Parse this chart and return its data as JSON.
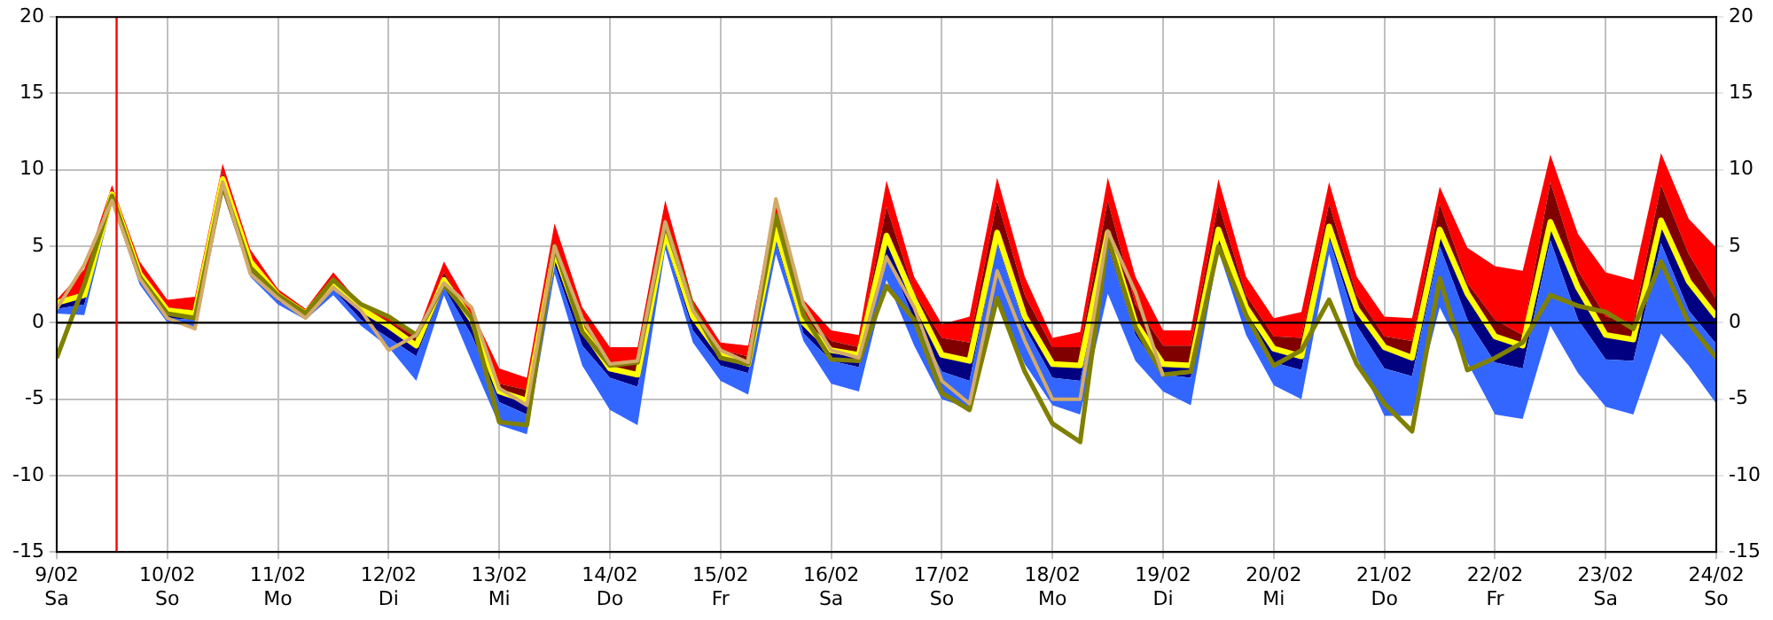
{
  "chart_data": {
    "type": "line",
    "x": [
      "--02-09T00:00",
      "--02-09T06:00",
      "--02-09T12:00",
      "--02-09T18:00",
      "--02-10T00:00",
      "--02-10T06:00",
      "--02-10T12:00",
      "--02-10T18:00",
      "--02-11T00:00",
      "--02-11T06:00",
      "--02-11T12:00",
      "--02-11T18:00",
      "--02-12T00:00",
      "--02-12T06:00",
      "--02-12T12:00",
      "--02-12T18:00",
      "--02-13T00:00",
      "--02-13T06:00",
      "--02-13T12:00",
      "--02-13T18:00",
      "--02-14T00:00",
      "--02-14T06:00",
      "--02-14T12:00",
      "--02-14T18:00",
      "--02-15T00:00",
      "--02-15T06:00",
      "--02-15T12:00",
      "--02-15T18:00",
      "--02-16T00:00",
      "--02-16T06:00",
      "--02-16T12:00",
      "--02-16T18:00",
      "--02-17T00:00",
      "--02-17T06:00",
      "--02-17T12:00",
      "--02-17T18:00",
      "--02-18T00:00",
      "--02-18T06:00",
      "--02-18T12:00",
      "--02-18T18:00",
      "--02-19T00:00",
      "--02-19T06:00",
      "--02-19T12:00",
      "--02-19T18:00",
      "--02-20T00:00",
      "--02-20T06:00",
      "--02-20T12:00",
      "--02-20T18:00",
      "--02-21T00:00",
      "--02-21T06:00",
      "--02-21T12:00",
      "--02-21T18:00",
      "--02-22T00:00",
      "--02-22T06:00",
      "--02-22T12:00",
      "--02-22T18:00",
      "--02-23T00:00",
      "--02-23T06:00",
      "--02-23T12:00",
      "--02-23T18:00",
      "--02-24T00:00"
    ],
    "xlim": [
      "--02-09",
      "--02-24"
    ],
    "xticks": [
      {
        "value": "--02-09",
        "label": "9/02\nSa"
      },
      {
        "value": "--02-10",
        "label": "10/02\nSo"
      },
      {
        "value": "--02-11",
        "label": "11/02\nMo"
      },
      {
        "value": "--02-12",
        "label": "12/02\nDi"
      },
      {
        "value": "--02-13",
        "label": "13/02\nMi"
      },
      {
        "value": "--02-14",
        "label": "14/02\nDo"
      },
      {
        "value": "--02-15",
        "label": "15/02\nFr"
      },
      {
        "value": "--02-16",
        "label": "16/02\nSa"
      },
      {
        "value": "--02-17",
        "label": "17/02\nSo"
      },
      {
        "value": "--02-18",
        "label": "18/02\nMo"
      },
      {
        "value": "--02-19",
        "label": "19/02\nDi"
      },
      {
        "value": "--02-20",
        "label": "20/02\nMi"
      },
      {
        "value": "--02-21",
        "label": "21/02\nDo"
      },
      {
        "value": "--02-22",
        "label": "22/02\nFr"
      },
      {
        "value": "--02-23",
        "label": "23/02\nSa"
      },
      {
        "value": "--02-24",
        "label": "24/02\nSo"
      }
    ],
    "series": [
      {
        "type": "area",
        "color": "#3366ff",
        "lower": [
          0.6,
          0.5,
          7.8,
          2.5,
          0.0,
          -0.3,
          8.6,
          3.0,
          1.2,
          0.2,
          1.8,
          -0.2,
          -1.6,
          -3.8,
          1.8,
          -2.5,
          -6.7,
          -7.3,
          3.2,
          -2.8,
          -5.7,
          -6.7,
          4.8,
          -1.3,
          -3.8,
          -4.7,
          4.5,
          -1.2,
          -4.0,
          -4.5,
          2.8,
          -1.5,
          -5.0,
          -5.6,
          1.4,
          -2.7,
          -5.4,
          -6.0,
          1.9,
          -2.5,
          -4.5,
          -5.4,
          4.7,
          -0.8,
          -4.1,
          -5.0,
          4.5,
          -2.3,
          -6.1,
          -6.1,
          1.0,
          -2.6,
          -6.0,
          -6.3,
          -0.2,
          -3.3,
          -5.5,
          -6.0,
          -0.7,
          -2.8,
          -5.3
        ],
        "values": [
          null,
          null,
          null,
          null,
          null,
          null,
          null,
          null,
          null,
          null,
          null,
          null,
          null,
          null,
          null,
          null,
          null,
          null,
          null,
          null,
          null,
          null,
          null,
          null,
          null,
          null,
          null,
          null,
          null,
          null,
          null,
          null,
          null,
          null,
          null,
          null,
          null,
          null,
          null,
          null,
          null,
          null,
          null,
          null,
          null,
          null,
          null,
          null,
          null,
          null,
          null,
          null,
          null,
          null,
          null,
          null,
          null,
          null,
          null,
          null,
          null
        ],
        "upper": [
          0.9,
          1.2,
          8.0,
          2.8,
          0.3,
          0.2,
          8.9,
          3.4,
          1.4,
          0.4,
          2.2,
          0.2,
          -1.0,
          -2.2,
          2.3,
          -0.8,
          -5.2,
          -6.0,
          3.8,
          -1.5,
          -3.6,
          -4.2,
          5.3,
          -0.5,
          -2.8,
          -3.3,
          5.3,
          -0.7,
          -2.5,
          -2.9,
          4.5,
          0.2,
          -3.2,
          -3.8,
          5.2,
          -0.3,
          -3.6,
          -3.8,
          5.0,
          -0.8,
          -3.4,
          -3.6,
          5.0,
          0.2,
          -2.6,
          -3.1,
          5.5,
          -0.2,
          -3.0,
          -3.5,
          5.0,
          0.2,
          -2.6,
          -3.0,
          5.4,
          0.2,
          -2.4,
          -2.5,
          5.2,
          0.8,
          -1.4
        ]
      },
      {
        "type": "area",
        "color": "#000080",
        "lower": [
          0.9,
          1.2,
          8.0,
          2.8,
          0.3,
          0.2,
          8.9,
          3.4,
          1.4,
          0.4,
          2.2,
          0.2,
          -1.0,
          -2.2,
          2.3,
          -0.8,
          -5.2,
          -6.0,
          3.8,
          -1.5,
          -3.6,
          -4.2,
          5.3,
          -0.5,
          -2.8,
          -3.3,
          5.3,
          -0.7,
          -2.5,
          -2.9,
          4.5,
          0.2,
          -3.2,
          -3.8,
          5.2,
          -0.3,
          -3.6,
          -3.8,
          5.0,
          -0.8,
          -3.4,
          -3.6,
          5.0,
          0.2,
          -2.6,
          -3.1,
          5.5,
          -0.2,
          -3.0,
          -3.5,
          5.0,
          0.2,
          -2.6,
          -3.0,
          5.4,
          0.2,
          -2.4,
          -2.5,
          5.2,
          0.8,
          -1.4
        ],
        "values": [
          null,
          null,
          null,
          null,
          null,
          null,
          null,
          null,
          null,
          null,
          null,
          null,
          null,
          null,
          null,
          null,
          null,
          null,
          null,
          null,
          null,
          null,
          null,
          null,
          null,
          null,
          null,
          null,
          null,
          null,
          null,
          null,
          null,
          null,
          null,
          null,
          null,
          null,
          null,
          null,
          null,
          null,
          null,
          null,
          null,
          null,
          null,
          null,
          null,
          null,
          null,
          null,
          null,
          null,
          null,
          null,
          null,
          null,
          null,
          null,
          null
        ],
        "upper": [
          1.3,
          1.8,
          8.4,
          3.2,
          0.8,
          0.6,
          9.4,
          4.0,
          1.8,
          0.6,
          2.7,
          0.9,
          -0.2,
          -1.5,
          2.8,
          0.2,
          -4.5,
          -5.1,
          4.7,
          -0.4,
          -3.0,
          -3.4,
          5.9,
          0.4,
          -2.1,
          -2.7,
          6.1,
          0.0,
          -1.8,
          -2.1,
          5.7,
          1.5,
          -2.1,
          -2.5,
          5.9,
          0.4,
          -2.7,
          -2.8,
          5.9,
          0.0,
          -2.7,
          -2.8,
          6.1,
          1.0,
          -1.7,
          -2.2,
          6.3,
          0.9,
          -1.6,
          -2.3,
          6.1,
          1.9,
          -0.9,
          -1.5,
          6.6,
          2.3,
          -0.8,
          -1.1,
          6.7,
          2.7,
          0.4
        ]
      },
      {
        "type": "area",
        "color": "#800000",
        "lower": [
          1.3,
          1.8,
          8.4,
          3.2,
          0.8,
          0.6,
          9.4,
          4.0,
          1.8,
          0.6,
          2.7,
          0.9,
          -0.2,
          -1.5,
          2.8,
          0.2,
          -4.5,
          -5.1,
          4.7,
          -0.4,
          -3.0,
          -3.4,
          5.9,
          0.4,
          -2.1,
          -2.7,
          6.1,
          0.0,
          -1.8,
          -2.1,
          5.7,
          1.5,
          -2.1,
          -2.5,
          5.9,
          0.4,
          -2.7,
          -2.8,
          5.9,
          0.0,
          -2.7,
          -2.8,
          6.1,
          1.0,
          -1.7,
          -2.2,
          6.3,
          0.9,
          -1.6,
          -2.3,
          6.1,
          1.9,
          -0.9,
          -1.5,
          6.6,
          2.3,
          -0.8,
          -1.1,
          6.7,
          2.7,
          0.4
        ],
        "values": [
          null,
          null,
          null,
          null,
          null,
          null,
          null,
          null,
          null,
          null,
          null,
          null,
          null,
          null,
          null,
          null,
          null,
          null,
          null,
          null,
          null,
          null,
          null,
          null,
          null,
          null,
          null,
          null,
          null,
          null,
          null,
          null,
          null,
          null,
          null,
          null,
          null,
          null,
          null,
          null,
          null,
          null,
          null,
          null,
          null,
          null,
          null,
          null,
          null,
          null,
          null,
          null,
          null,
          null,
          null,
          null,
          null,
          null,
          null,
          null,
          null
        ],
        "upper": [
          1.4,
          2.0,
          8.7,
          3.4,
          1.0,
          0.8,
          9.8,
          4.2,
          2.0,
          0.7,
          3.0,
          1.1,
          0.1,
          -1.0,
          3.3,
          0.4,
          -4.0,
          -4.4,
          5.2,
          0.0,
          -2.6,
          -2.6,
          6.8,
          0.7,
          -1.8,
          -2.2,
          7.2,
          0.5,
          -1.2,
          -1.6,
          7.6,
          2.0,
          -1.0,
          -1.3,
          8.0,
          1.8,
          -1.6,
          -1.6,
          8.0,
          1.2,
          -1.5,
          -1.5,
          7.8,
          1.8,
          -0.9,
          -1.0,
          7.8,
          1.8,
          -0.9,
          -1.2,
          7.8,
          2.6,
          0.2,
          -0.8,
          9.2,
          3.4,
          0.4,
          0.0,
          9.0,
          4.5,
          1.5
        ]
      },
      {
        "type": "area",
        "color": "#ff0000",
        "lower": [
          1.4,
          2.0,
          8.7,
          3.4,
          1.0,
          0.8,
          9.8,
          4.2,
          2.0,
          0.7,
          3.0,
          1.1,
          0.1,
          -1.0,
          3.3,
          0.4,
          -4.0,
          -4.4,
          5.2,
          0.0,
          -2.6,
          -2.6,
          6.8,
          0.7,
          -1.8,
          -2.2,
          7.2,
          0.5,
          -1.2,
          -1.6,
          7.6,
          2.0,
          -1.0,
          -1.3,
          8.0,
          1.8,
          -1.6,
          -1.6,
          8.0,
          1.2,
          -1.5,
          -1.5,
          7.8,
          1.8,
          -0.9,
          -1.0,
          7.8,
          1.8,
          -0.9,
          -1.2,
          7.8,
          2.6,
          0.2,
          -0.8,
          9.2,
          3.4,
          0.4,
          0.0,
          9.0,
          4.5,
          1.5
        ],
        "values": [
          null,
          null,
          null,
          null,
          null,
          null,
          null,
          null,
          null,
          null,
          null,
          null,
          null,
          null,
          null,
          null,
          null,
          null,
          null,
          null,
          null,
          null,
          null,
          null,
          null,
          null,
          null,
          null,
          null,
          null,
          null,
          null,
          null,
          null,
          null,
          null,
          null,
          null,
          null,
          null,
          null,
          null,
          null,
          null,
          null,
          null,
          null,
          null,
          null,
          null,
          null,
          null,
          null,
          null,
          null,
          null,
          null,
          null,
          null,
          null,
          null
        ],
        "upper": [
          1.5,
          3.5,
          9.0,
          4.0,
          1.5,
          1.7,
          10.4,
          4.8,
          2.2,
          0.9,
          3.3,
          1.2,
          0.3,
          -0.8,
          4.0,
          0.8,
          -3.0,
          -3.6,
          6.5,
          1.0,
          -1.6,
          -1.6,
          8.0,
          1.5,
          -1.3,
          -1.5,
          8.2,
          1.5,
          -0.5,
          -0.8,
          9.3,
          3.0,
          -0.1,
          0.4,
          9.5,
          3.0,
          -1.0,
          -0.6,
          9.5,
          3.0,
          -0.5,
          -0.5,
          9.4,
          3.0,
          0.3,
          0.7,
          9.2,
          3.0,
          0.4,
          0.3,
          8.9,
          4.9,
          3.7,
          3.4,
          11.0,
          5.8,
          3.3,
          2.8,
          11.1,
          6.8,
          4.9
        ]
      },
      {
        "color": "#d2aa6a",
        "values": [
          0.9,
          3.8,
          8.0,
          2.9,
          0.3,
          -0.4,
          9.2,
          3.2,
          1.6,
          0.3,
          2.3,
          0.8,
          -1.8,
          -0.8,
          2.6,
          1.0,
          -4.3,
          -5.4,
          5.0,
          0.3,
          -2.7,
          -2.5,
          6.6,
          0.8,
          -1.8,
          -2.6,
          8.1,
          1.2,
          -1.8,
          -2.3,
          4.3,
          1.0,
          -3.8,
          -5.3,
          3.4,
          -1.2,
          -5.0,
          -5.0,
          6.0,
          2.0,
          -3.5,
          null,
          null,
          null,
          null,
          null,
          null,
          null,
          null,
          null,
          null,
          null,
          null,
          null,
          null,
          null,
          null,
          null,
          null,
          null,
          null
        ]
      },
      {
        "color": "#808000",
        "values": [
          -2.3,
          2.5,
          8.3,
          3.0,
          0.6,
          0.3,
          9.0,
          3.6,
          1.8,
          0.6,
          2.8,
          1.2,
          0.4,
          -0.8,
          2.5,
          0.3,
          -6.5,
          -6.7,
          5.0,
          -0.6,
          -2.8,
          -2.6,
          6.5,
          1.0,
          -2.3,
          -2.7,
          7.0,
          0.5,
          -2.4,
          -2.5,
          2.4,
          0.2,
          -4.6,
          -5.7,
          1.6,
          -3.2,
          -6.6,
          -7.8,
          5.6,
          -0.3,
          -3.4,
          -3.2,
          5.0,
          0.5,
          -2.8,
          -1.8,
          1.5,
          -2.7,
          -5.3,
          -7.1,
          2.9,
          -3.1,
          -2.3,
          -1.3,
          1.8,
          1.1,
          0.7,
          -0.4,
          4.0,
          0.0,
          -2.3
        ]
      },
      {
        "color": "#ffff00",
        "values": [
          1.3,
          1.8,
          8.4,
          3.2,
          0.8,
          0.6,
          9.4,
          4.0,
          1.8,
          0.6,
          2.7,
          0.9,
          -0.2,
          -1.5,
          2.8,
          0.2,
          -4.5,
          -5.1,
          4.7,
          -0.4,
          -3.0,
          -3.4,
          5.9,
          0.4,
          -2.1,
          -2.7,
          6.1,
          0.0,
          -1.8,
          -2.1,
          5.7,
          1.5,
          -2.1,
          -2.5,
          5.9,
          0.4,
          -2.7,
          -2.8,
          5.9,
          0.0,
          -2.7,
          -2.8,
          6.1,
          1.0,
          -1.7,
          -2.2,
          6.3,
          0.9,
          -1.6,
          -2.3,
          6.1,
          1.9,
          -0.9,
          -1.5,
          6.6,
          2.3,
          -0.8,
          -1.1,
          6.7,
          2.7,
          0.4
        ]
      }
    ],
    "ylim": [
      -15,
      20
    ],
    "yticks": [
      -15,
      -10,
      -5,
      0,
      5,
      10,
      15,
      20
    ],
    "y2lim": [
      -15,
      20
    ],
    "y2ticks": [
      -15,
      -10,
      -5,
      0,
      5,
      10,
      15,
      20
    ],
    "ref_lines": [
      {
        "axis": "y",
        "value": 0,
        "color": "#000000"
      },
      {
        "axis": "x",
        "value": "--02-09T13:00",
        "color": "#ff0000"
      }
    ],
    "grid": true,
    "legend": false,
    "marker": "none",
    "line_style": "solid"
  }
}
